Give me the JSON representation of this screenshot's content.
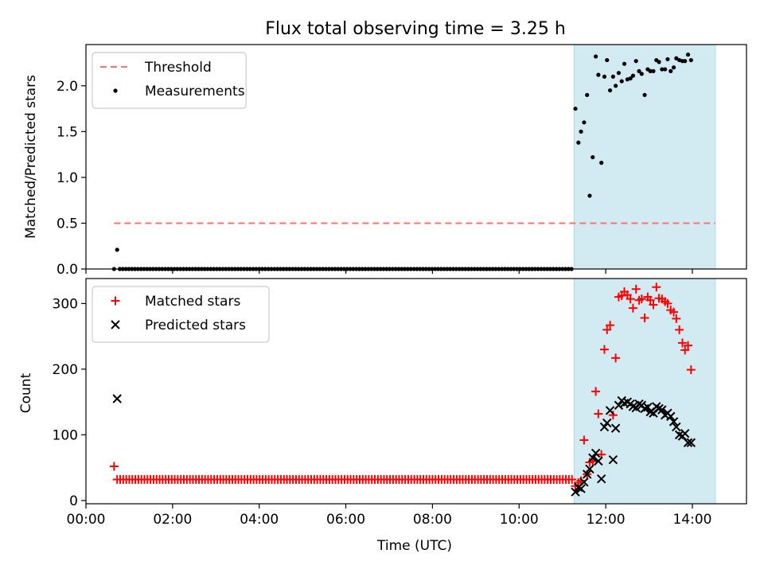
{
  "chart_data": [
    {
      "type": "scatter",
      "title": "Flux total observing time = 3.25 h",
      "xlabel": "",
      "ylabel": "Matched/Predicted stars",
      "xlim": [
        0.0,
        15.25
      ],
      "ylim": [
        0,
        2.45
      ],
      "ytick_labels": [
        "0.0",
        "0.5",
        "1.0",
        "1.5",
        "2.0"
      ],
      "ytick_values": [
        0,
        0.5,
        1.0,
        1.5,
        2.0
      ],
      "shaded_span_hours": [
        11.27,
        14.53
      ],
      "shade_color": "#add8e6",
      "legend_position": "top-left",
      "threshold": {
        "name": "Threshold",
        "value": 0.5,
        "x_range": [
          0.65,
          14.53
        ],
        "color": "#ff7070"
      },
      "series": [
        {
          "name": "Measurements",
          "color": "#000000",
          "marker": "dot",
          "sparse_points": [
            [
              0.65,
              0.0
            ],
            [
              0.72,
              0.21
            ],
            [
              11.3,
              1.75
            ],
            [
              11.37,
              1.38
            ],
            [
              11.43,
              1.5
            ],
            [
              11.5,
              1.6
            ],
            [
              11.57,
              1.9
            ],
            [
              11.63,
              0.8
            ],
            [
              11.7,
              1.22
            ],
            [
              11.77,
              2.32
            ],
            [
              11.83,
              2.12
            ],
            [
              11.9,
              1.16
            ],
            [
              11.97,
              2.1
            ],
            [
              12.03,
              2.28
            ],
            [
              12.1,
              1.95
            ],
            [
              12.17,
              2.1
            ],
            [
              12.23,
              2.0
            ],
            [
              12.3,
              2.14
            ],
            [
              12.37,
              2.05
            ],
            [
              12.43,
              2.24
            ],
            [
              12.5,
              2.07
            ],
            [
              12.57,
              2.08
            ],
            [
              12.63,
              2.11
            ],
            [
              12.7,
              2.27
            ],
            [
              12.77,
              2.16
            ],
            [
              12.83,
              2.13
            ],
            [
              12.9,
              1.9
            ],
            [
              12.97,
              2.18
            ],
            [
              13.03,
              2.16
            ],
            [
              13.1,
              2.16
            ],
            [
              13.17,
              2.28
            ],
            [
              13.23,
              2.26
            ],
            [
              13.3,
              2.18
            ],
            [
              13.37,
              2.18
            ],
            [
              13.43,
              2.29
            ],
            [
              13.5,
              2.16
            ],
            [
              13.57,
              2.2
            ],
            [
              13.63,
              2.3
            ],
            [
              13.7,
              2.28
            ],
            [
              13.77,
              2.27
            ],
            [
              13.83,
              2.27
            ],
            [
              13.9,
              2.34
            ],
            [
              13.97,
              2.28
            ]
          ],
          "baseline_run": {
            "value": 0.0,
            "x_start": 0.78,
            "x_end": 11.25,
            "step": 0.07
          }
        }
      ]
    },
    {
      "type": "scatter",
      "title": "",
      "xlabel": "Time (UTC)",
      "ylabel": "Count",
      "xlim": [
        0.0,
        15.25
      ],
      "ylim": [
        -5,
        338
      ],
      "ytick_labels": [
        "0",
        "100",
        "200",
        "300"
      ],
      "ytick_values": [
        0,
        100,
        200,
        300
      ],
      "xtick_labels": [
        "00:00",
        "02:00",
        "04:00",
        "06:00",
        "08:00",
        "10:00",
        "12:00",
        "14:00"
      ],
      "xtick_values": [
        0,
        2,
        4,
        6,
        8,
        10,
        12,
        14
      ],
      "shaded_span_hours": [
        11.27,
        14.53
      ],
      "shade_color": "#add8e6",
      "legend_position": "top-left",
      "series": [
        {
          "name": "Matched stars",
          "color": "#ff0000",
          "marker": "plus",
          "sparse_points": [
            [
              0.65,
              52
            ],
            [
              11.3,
              22
            ],
            [
              11.37,
              27
            ],
            [
              11.43,
              30
            ],
            [
              11.5,
              92
            ],
            [
              11.57,
              40
            ],
            [
              11.63,
              58
            ],
            [
              11.7,
              60
            ],
            [
              11.77,
              166
            ],
            [
              11.83,
              132
            ],
            [
              11.9,
              70
            ],
            [
              11.97,
              230
            ],
            [
              12.03,
              260
            ],
            [
              12.1,
              267
            ],
            [
              12.17,
              130
            ],
            [
              12.23,
              217
            ],
            [
              12.3,
              310
            ],
            [
              12.37,
              312
            ],
            [
              12.43,
              318
            ],
            [
              12.5,
              313
            ],
            [
              12.57,
              307
            ],
            [
              12.63,
              293
            ],
            [
              12.7,
              322
            ],
            [
              12.77,
              305
            ],
            [
              12.83,
              307
            ],
            [
              12.9,
              278
            ],
            [
              12.97,
              310
            ],
            [
              13.03,
              305
            ],
            [
              13.1,
              298
            ],
            [
              13.17,
              325
            ],
            [
              13.23,
              308
            ],
            [
              13.3,
              307
            ],
            [
              13.37,
              303
            ],
            [
              13.43,
              300
            ],
            [
              13.5,
              290
            ],
            [
              13.57,
              287
            ],
            [
              13.63,
              277
            ],
            [
              13.7,
              260
            ],
            [
              13.77,
              240
            ],
            [
              13.83,
              229
            ],
            [
              13.9,
              236
            ],
            [
              13.97,
              199
            ]
          ],
          "baseline_run": {
            "value": 32,
            "x_start": 0.72,
            "x_end": 11.25,
            "step": 0.07
          }
        },
        {
          "name": "Predicted stars",
          "color": "#000000",
          "marker": "x",
          "sparse_points": [
            [
              0.72,
              155
            ],
            [
              11.3,
              13
            ],
            [
              11.37,
              20
            ],
            [
              11.43,
              18
            ],
            [
              11.5,
              28
            ],
            [
              11.57,
              40
            ],
            [
              11.63,
              48
            ],
            [
              11.7,
              65
            ],
            [
              11.77,
              72
            ],
            [
              11.83,
              60
            ],
            [
              11.9,
              33
            ],
            [
              11.97,
              112
            ],
            [
              12.03,
              118
            ],
            [
              12.1,
              137
            ],
            [
              12.17,
              62
            ],
            [
              12.23,
              110
            ],
            [
              12.3,
              145
            ],
            [
              12.37,
              152
            ],
            [
              12.43,
              148
            ],
            [
              12.5,
              150
            ],
            [
              12.57,
              147
            ],
            [
              12.63,
              143
            ],
            [
              12.7,
              141
            ],
            [
              12.77,
              147
            ],
            [
              12.83,
              145
            ],
            [
              12.9,
              140
            ],
            [
              12.97,
              142
            ],
            [
              13.03,
              135
            ],
            [
              13.1,
              133
            ],
            [
              13.17,
              143
            ],
            [
              13.23,
              140
            ],
            [
              13.3,
              138
            ],
            [
              13.37,
              130
            ],
            [
              13.43,
              133
            ],
            [
              13.5,
              128
            ],
            [
              13.57,
              120
            ],
            [
              13.63,
              112
            ],
            [
              13.7,
              100
            ],
            [
              13.77,
              98
            ],
            [
              13.83,
              102
            ],
            [
              13.9,
              88
            ],
            [
              13.97,
              88
            ]
          ]
        }
      ]
    }
  ]
}
